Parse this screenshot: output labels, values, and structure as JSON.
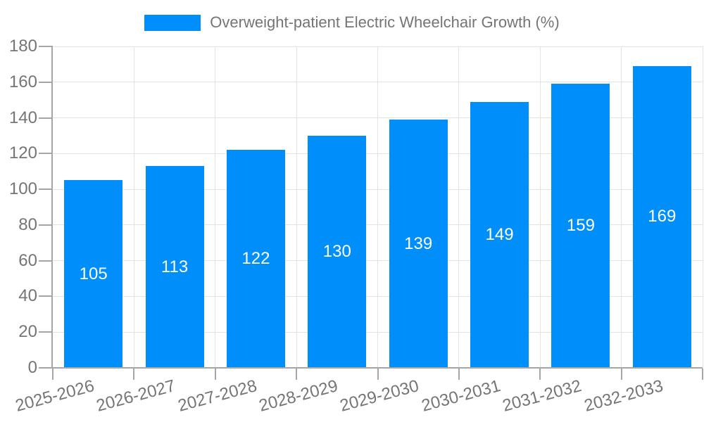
{
  "chart_data": {
    "type": "bar",
    "title": "Overweight-patient Electric Wheelchair Growth (%)",
    "categories": [
      "2025-2026",
      "2026-2027",
      "2027-2028",
      "2028-2029",
      "2029-2030",
      "2030-2031",
      "2031-2032",
      "2032-2033"
    ],
    "values": [
      105,
      113,
      122,
      130,
      139,
      149,
      159,
      169
    ],
    "xlabel": "",
    "ylabel": "",
    "ylim": [
      0,
      180
    ],
    "ytick_step": 20,
    "yticks": [
      0,
      20,
      40,
      60,
      80,
      100,
      120,
      140,
      160,
      180
    ],
    "grid": true,
    "legend": {
      "position": "top",
      "label": "Overweight-patient Electric Wheelchair Growth (%)"
    },
    "bar_value_labels_position": "inside-center",
    "colors": {
      "bar": "#008FFA",
      "bar_label": "#FFFFFF",
      "axis_text": "#757575",
      "axis_line": "#A6A6A6",
      "grid_line": "#E3E3E3",
      "background": "#FFFFFF"
    }
  }
}
